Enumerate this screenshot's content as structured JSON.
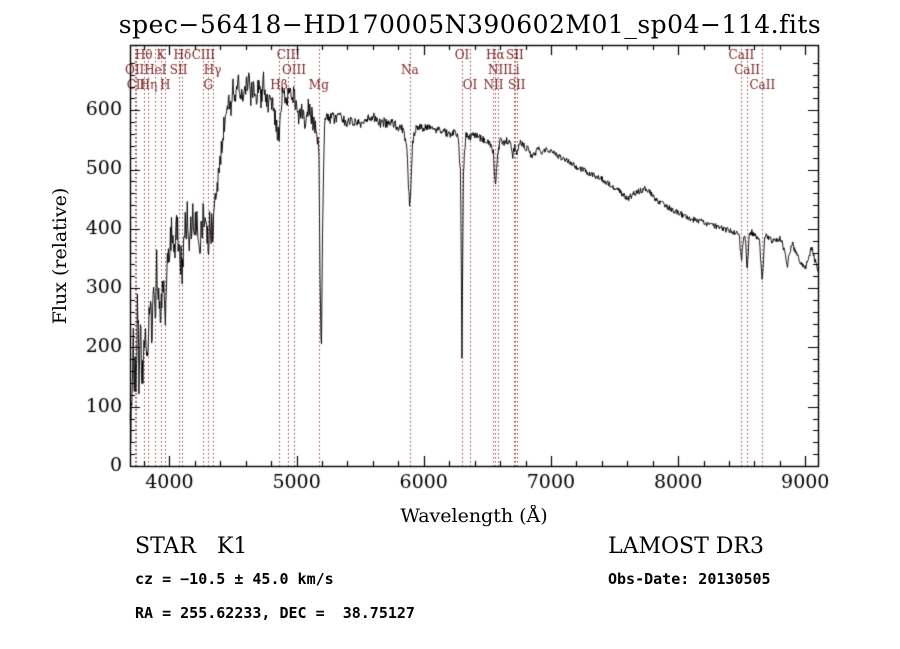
{
  "annotations": {
    "star_class": "STAR   K1",
    "survey": "LAMOST DR3",
    "cz": "cz = −10.5 ± 45.0 km/s",
    "obs_date": "Obs-Date: 20130505",
    "ra_dec": "RA = 255.62233, DEC =  38.75127"
  },
  "chart_data": {
    "type": "line",
    "title": "spec−56418−HD170005N390602M01_sp04−114.fits",
    "xlabel": "Wavelength (Å)",
    "ylabel": "Flux (relative)",
    "xlim": [
      3690,
      9100
    ],
    "ylim": [
      0,
      710
    ],
    "xticks": [
      4000,
      5000,
      6000,
      7000,
      8000,
      9000
    ],
    "x_minor_step": 200,
    "yticks": [
      0,
      100,
      200,
      300,
      400,
      500,
      600
    ],
    "y_minor_step": 20,
    "grid": false,
    "background": "#ffffff",
    "line_color": "#000000",
    "marker_line_color": "#9a4545",
    "marker_label_color": "#7a1f1f",
    "line_markers": [
      {
        "label": "Hθ",
        "wl": 3798,
        "row": 0
      },
      {
        "label": "K",
        "wl": 3933,
        "row": 0
      },
      {
        "label": "Hδ",
        "wl": 4102,
        "row": 0
      },
      {
        "label": "OII",
        "wl": 3727,
        "row": 1
      },
      {
        "label": "HeI",
        "wl": 3889,
        "row": 1
      },
      {
        "label": "SII",
        "wl": 4072,
        "row": 1
      },
      {
        "label": "CII",
        "wl": 3737,
        "row": 2
      },
      {
        "label": "Hη",
        "wl": 3835,
        "row": 2
      },
      {
        "label": "H",
        "wl": 3968,
        "row": 2
      },
      {
        "label": "CIII",
        "wl": 4267,
        "row": 0
      },
      {
        "label": "Hγ",
        "wl": 4340,
        "row": 1
      },
      {
        "label": "G",
        "wl": 4305,
        "row": 2
      },
      {
        "label": "CIII",
        "wl": 4935,
        "row": 0
      },
      {
        "label": "OIII",
        "wl": 4980,
        "row": 1
      },
      {
        "label": "Hβ",
        "wl": 4861,
        "row": 2
      },
      {
        "label": "Mg",
        "wl": 5175,
        "row": 2
      },
      {
        "label": "Na",
        "wl": 5890,
        "row": 1
      },
      {
        "label": "OI",
        "wl": 6300,
        "row": 0
      },
      {
        "label": "OI",
        "wl": 6363,
        "row": 2
      },
      {
        "label": "Hα",
        "wl": 6563,
        "row": 0
      },
      {
        "label": "SII",
        "wl": 6716,
        "row": 0
      },
      {
        "label": "NII",
        "wl": 6583,
        "row": 1
      },
      {
        "label": "Li",
        "wl": 6707,
        "row": 1
      },
      {
        "label": "NII",
        "wl": 6548,
        "row": 2
      },
      {
        "label": "SII",
        "wl": 6731,
        "row": 2
      },
      {
        "label": "CaII",
        "wl": 8498,
        "row": 0
      },
      {
        "label": "CaII",
        "wl": 8542,
        "row": 1
      },
      {
        "label": "CaII",
        "wl": 8662,
        "row": 2
      }
    ],
    "noise_regions": [
      {
        "from": 3690,
        "to": 3800,
        "amp": 55
      },
      {
        "from": 3800,
        "to": 4350,
        "amp": 32
      },
      {
        "from": 4350,
        "to": 5150,
        "amp": 18
      },
      {
        "from": 5150,
        "to": 5900,
        "amp": 8
      },
      {
        "from": 5900,
        "to": 7000,
        "amp": 6
      },
      {
        "from": 7000,
        "to": 9100,
        "amp": 5
      }
    ],
    "series": [
      {
        "name": "flux",
        "anchors": [
          [
            3690,
            20
          ],
          [
            3698,
            110
          ],
          [
            3706,
            50
          ],
          [
            3714,
            250
          ],
          [
            3722,
            90
          ],
          [
            3730,
            190
          ],
          [
            3740,
            130
          ],
          [
            3750,
            295
          ],
          [
            3760,
            150
          ],
          [
            3772,
            235
          ],
          [
            3784,
            115
          ],
          [
            3798,
            205
          ],
          [
            3810,
            255
          ],
          [
            3822,
            165
          ],
          [
            3835,
            225
          ],
          [
            3848,
            295
          ],
          [
            3862,
            215
          ],
          [
            3876,
            315
          ],
          [
            3889,
            245
          ],
          [
            3900,
            335
          ],
          [
            3914,
            295
          ],
          [
            3933,
            258
          ],
          [
            3946,
            328
          ],
          [
            3958,
            278
          ],
          [
            3970,
            238
          ],
          [
            3984,
            335
          ],
          [
            4000,
            368
          ],
          [
            4020,
            398
          ],
          [
            4040,
            358
          ],
          [
            4060,
            408
          ],
          [
            4080,
            368
          ],
          [
            4102,
            328
          ],
          [
            4120,
            398
          ],
          [
            4140,
            418
          ],
          [
            4160,
            388
          ],
          [
            4180,
            428
          ],
          [
            4200,
            398
          ],
          [
            4220,
            418
          ],
          [
            4240,
            388
          ],
          [
            4260,
            408
          ],
          [
            4280,
            428
          ],
          [
            4305,
            378
          ],
          [
            4320,
            418
          ],
          [
            4340,
            388
          ],
          [
            4360,
            448
          ],
          [
            4380,
            478
          ],
          [
            4400,
            515
          ],
          [
            4420,
            555
          ],
          [
            4440,
            598
          ],
          [
            4460,
            618
          ],
          [
            4480,
            598
          ],
          [
            4500,
            638
          ],
          [
            4520,
            618
          ],
          [
            4540,
            648
          ],
          [
            4560,
            628
          ],
          [
            4580,
            608
          ],
          [
            4600,
            643
          ],
          [
            4620,
            653
          ],
          [
            4640,
            623
          ],
          [
            4660,
            643
          ],
          [
            4680,
            613
          ],
          [
            4700,
            638
          ],
          [
            4720,
            618
          ],
          [
            4740,
            648
          ],
          [
            4760,
            628
          ],
          [
            4780,
            608
          ],
          [
            4800,
            623
          ],
          [
            4820,
            598
          ],
          [
            4840,
            578
          ],
          [
            4861,
            553
          ],
          [
            4880,
            613
          ],
          [
            4900,
            638
          ],
          [
            4920,
            618
          ],
          [
            4940,
            633
          ],
          [
            4960,
            613
          ],
          [
            4980,
            628
          ],
          [
            5000,
            608
          ],
          [
            5020,
            588
          ],
          [
            5040,
            603
          ],
          [
            5060,
            583
          ],
          [
            5080,
            598
          ],
          [
            5100,
            608
          ],
          [
            5120,
            588
          ],
          [
            5140,
            573
          ],
          [
            5160,
            553
          ],
          [
            5175,
            543
          ],
          [
            5185,
            300
          ],
          [
            5195,
            180
          ],
          [
            5205,
            420
          ],
          [
            5220,
            578
          ],
          [
            5240,
            593
          ],
          [
            5260,
            583
          ],
          [
            5280,
            593
          ],
          [
            5300,
            583
          ],
          [
            5330,
            588
          ],
          [
            5360,
            588
          ],
          [
            5390,
            575
          ],
          [
            5420,
            583
          ],
          [
            5450,
            578
          ],
          [
            5480,
            583
          ],
          [
            5510,
            577
          ],
          [
            5540,
            582
          ],
          [
            5570,
            587
          ],
          [
            5600,
            590
          ],
          [
            5630,
            583
          ],
          [
            5660,
            578
          ],
          [
            5690,
            580
          ],
          [
            5720,
            576
          ],
          [
            5750,
            580
          ],
          [
            5780,
            575
          ],
          [
            5810,
            571
          ],
          [
            5840,
            566
          ],
          [
            5865,
            540
          ],
          [
            5890,
            430
          ],
          [
            5912,
            545
          ],
          [
            5935,
            568
          ],
          [
            5960,
            573
          ],
          [
            6000,
            569
          ],
          [
            6040,
            573
          ],
          [
            6080,
            564
          ],
          [
            6120,
            569
          ],
          [
            6160,
            564
          ],
          [
            6200,
            559
          ],
          [
            6240,
            563
          ],
          [
            6270,
            558
          ],
          [
            6290,
            490
          ],
          [
            6300,
            185
          ],
          [
            6312,
            500
          ],
          [
            6330,
            558
          ],
          [
            6360,
            554
          ],
          [
            6400,
            559
          ],
          [
            6440,
            554
          ],
          [
            6480,
            549
          ],
          [
            6520,
            544
          ],
          [
            6548,
            529
          ],
          [
            6563,
            470
          ],
          [
            6582,
            528
          ],
          [
            6600,
            549
          ],
          [
            6625,
            545
          ],
          [
            6650,
            549
          ],
          [
            6680,
            544
          ],
          [
            6700,
            522
          ],
          [
            6716,
            540
          ],
          [
            6731,
            528
          ],
          [
            6760,
            544
          ],
          [
            6790,
            539
          ],
          [
            6820,
            534
          ],
          [
            6850,
            521
          ],
          [
            6880,
            529
          ],
          [
            6910,
            534
          ],
          [
            6940,
            529
          ],
          [
            6970,
            533
          ],
          [
            7000,
            529
          ],
          [
            7050,
            524
          ],
          [
            7100,
            518
          ],
          [
            7150,
            513
          ],
          [
            7200,
            504
          ],
          [
            7250,
            499
          ],
          [
            7300,
            494
          ],
          [
            7350,
            489
          ],
          [
            7400,
            484
          ],
          [
            7450,
            477
          ],
          [
            7500,
            469
          ],
          [
            7550,
            461
          ],
          [
            7600,
            450
          ],
          [
            7650,
            459
          ],
          [
            7700,
            464
          ],
          [
            7750,
            469
          ],
          [
            7800,
            455
          ],
          [
            7850,
            445
          ],
          [
            7900,
            439
          ],
          [
            7950,
            432
          ],
          [
            8000,
            427
          ],
          [
            8050,
            422
          ],
          [
            8100,
            417
          ],
          [
            8150,
            414
          ],
          [
            8200,
            411
          ],
          [
            8250,
            407
          ],
          [
            8300,
            404
          ],
          [
            8350,
            401
          ],
          [
            8400,
            397
          ],
          [
            8450,
            394
          ],
          [
            8480,
            389
          ],
          [
            8498,
            344
          ],
          [
            8515,
            389
          ],
          [
            8530,
            384
          ],
          [
            8542,
            329
          ],
          [
            8560,
            389
          ],
          [
            8580,
            394
          ],
          [
            8600,
            389
          ],
          [
            8620,
            384
          ],
          [
            8640,
            379
          ],
          [
            8662,
            309
          ],
          [
            8680,
            384
          ],
          [
            8700,
            389
          ],
          [
            8720,
            384
          ],
          [
            8740,
            379
          ],
          [
            8760,
            384
          ],
          [
            8780,
            379
          ],
          [
            8800,
            384
          ],
          [
            8820,
            374
          ],
          [
            8840,
            359
          ],
          [
            8860,
            339
          ],
          [
            8880,
            364
          ],
          [
            8900,
            374
          ],
          [
            8920,
            364
          ],
          [
            8940,
            354
          ],
          [
            8960,
            344
          ],
          [
            8980,
            339
          ],
          [
            9000,
            334
          ],
          [
            9050,
            368
          ],
          [
            9100,
            328
          ]
        ]
      }
    ]
  }
}
